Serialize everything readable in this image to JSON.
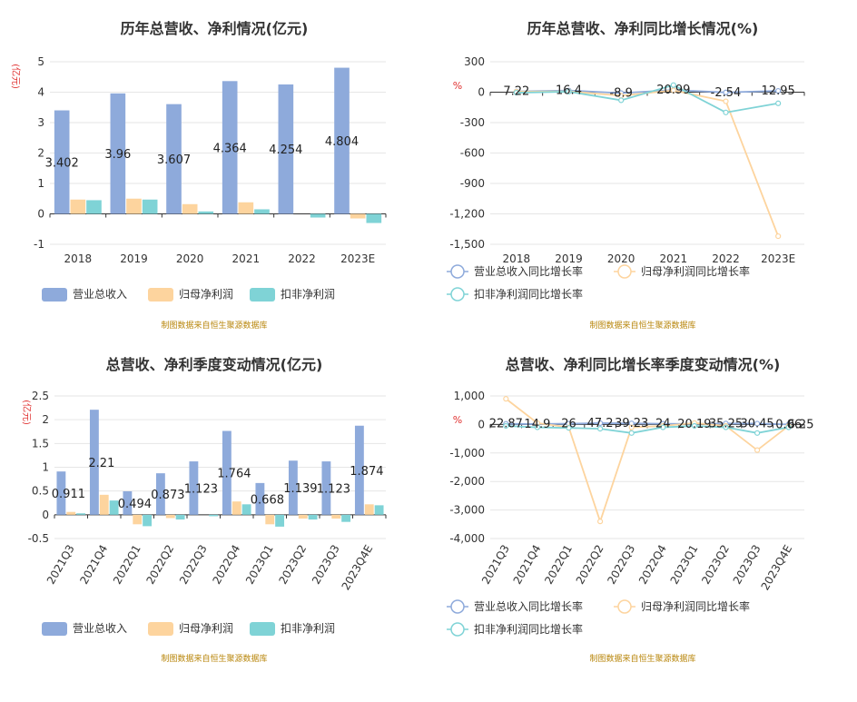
{
  "chart_data": [
    {
      "type": "bar",
      "title": "历年总营收、净利情况(亿元)",
      "ylabel": "(亿元)",
      "ylim": [
        -1,
        5
      ],
      "yticks": [
        -1,
        0,
        1,
        2,
        3,
        4,
        5
      ],
      "categories": [
        "2018",
        "2019",
        "2020",
        "2021",
        "2022",
        "2023E"
      ],
      "series": [
        {
          "name": "营业总收入",
          "values": [
            3.402,
            3.96,
            3.607,
            4.364,
            4.254,
            4.804
          ],
          "labels": [
            "3.402",
            "3.96",
            "3.607",
            "4.364",
            "4.254",
            "4.804"
          ]
        },
        {
          "name": "归母净利润",
          "values": [
            0.47,
            0.5,
            0.32,
            0.38,
            0.0,
            -0.15
          ]
        },
        {
          "name": "扣非净利润",
          "values": [
            0.45,
            0.47,
            0.08,
            0.15,
            -0.12,
            -0.3
          ]
        }
      ],
      "source": "制图数据来自恒生聚源数据库",
      "legend": "bottom"
    },
    {
      "type": "line",
      "title": "历年总营收、净利同比增长情况(%)",
      "ylabel": "%",
      "ylim": [
        -1500,
        300
      ],
      "yticks": [
        -1500,
        -1200,
        -900,
        -600,
        -300,
        0,
        300
      ],
      "ytick_labels": [
        "-1,500",
        "-1,200",
        "-900",
        "-600",
        "-300",
        "0",
        "300"
      ],
      "categories": [
        "2018",
        "2019",
        "2020",
        "2021",
        "2022",
        "2023E"
      ],
      "series": [
        {
          "name": "营业总收入同比增长率",
          "values": [
            7.22,
            16.4,
            -8.9,
            20.99,
            -2.54,
            12.95
          ],
          "labels": [
            "7.22",
            "16.4",
            "-8.9",
            "20.99",
            "-2.54",
            "12.95"
          ]
        },
        {
          "name": "归母净利润同比增长率",
          "values": [
            5,
            8,
            -35,
            18,
            -90,
            -1420
          ]
        },
        {
          "name": "扣非净利润同比增长率",
          "values": [
            -5,
            5,
            -80,
            70,
            -200,
            -110
          ]
        }
      ],
      "source": "制图数据来自恒生聚源数据库",
      "legend": "bottom"
    },
    {
      "type": "bar",
      "title": "总营收、净利季度变动情况(亿元)",
      "ylabel": "(亿元)",
      "ylim": [
        -0.5,
        2.5
      ],
      "yticks": [
        -0.5,
        0,
        0.5,
        1,
        1.5,
        2,
        2.5
      ],
      "categories": [
        "2021Q3",
        "2021Q4",
        "2022Q1",
        "2022Q2",
        "2022Q3",
        "2022Q4",
        "2023Q1",
        "2023Q2",
        "2023Q3",
        "2023Q4E"
      ],
      "series": [
        {
          "name": "营业总收入",
          "values": [
            0.911,
            2.21,
            0.494,
            0.873,
            1.123,
            1.764,
            0.668,
            1.139,
            1.123,
            1.874
          ],
          "labels": [
            "0.911",
            "2.21",
            "0.494",
            "0.873",
            "1.123",
            "1.764",
            "0.668",
            "1.139",
            "1.123",
            "1.874"
          ]
        },
        {
          "name": "归母净利润",
          "values": [
            0.06,
            0.42,
            -0.2,
            -0.07,
            0.0,
            0.28,
            -0.2,
            -0.08,
            -0.08,
            0.22
          ]
        },
        {
          "name": "扣非净利润",
          "values": [
            0.03,
            0.3,
            -0.24,
            -0.1,
            -0.03,
            0.22,
            -0.25,
            -0.1,
            -0.15,
            0.2
          ]
        }
      ],
      "source": "制图数据来自恒生聚源数据库",
      "legend": "bottom"
    },
    {
      "type": "line",
      "title": "总营收、净利同比增长率季度变动情况(%)",
      "ylabel": "%",
      "ylim": [
        -4000,
        1000
      ],
      "yticks": [
        -4000,
        -3000,
        -2000,
        -1000,
        0,
        1000
      ],
      "ytick_labels": [
        "-4,000",
        "-3,000",
        "-2,000",
        "-1,000",
        "0",
        "1,000"
      ],
      "categories": [
        "2021Q3",
        "2021Q4",
        "2022Q1",
        "2022Q2",
        "2022Q3",
        "2022Q4",
        "2023Q1",
        "2023Q2",
        "2023Q3",
        "2023Q4E"
      ],
      "series": [
        {
          "name": "营业总收入同比增长率",
          "values": [
            22.87,
            14.9,
            26,
            47.2,
            39.23,
            24,
            20.19,
            35.25,
            30.45,
            0.06
          ],
          "labels": [
            "22.87",
            "14.9",
            "26",
            "47.2",
            "39.23",
            "24",
            "20.19",
            "35.25",
            "30.45",
            "0.06"
          ],
          "extra_label": "6.25"
        },
        {
          "name": "归母净利润同比增长率",
          "values": [
            900,
            50,
            -100,
            -3400,
            -100,
            -50,
            50,
            -50,
            -900,
            -50
          ]
        },
        {
          "name": "扣非净利润同比增长率",
          "values": [
            -50,
            -100,
            -120,
            -150,
            -300,
            -100,
            -50,
            -100,
            -300,
            -100
          ]
        }
      ],
      "source": "制图数据来自恒生聚源数据库",
      "legend": "bottom"
    }
  ],
  "colors": {
    "revenue": "#8eaadb",
    "net_profit": "#fdd49e",
    "deducted_profit": "#7fd3d6",
    "ylabel": "#e0302f",
    "grid": "#e6e6e6",
    "axis": "#333333",
    "text": "#333333",
    "source": "#b8860b"
  }
}
